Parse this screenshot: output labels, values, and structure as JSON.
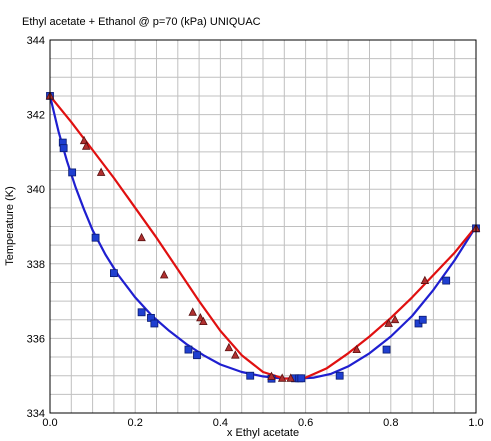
{
  "chart_data": {
    "type": "line",
    "title": "Ethyl acetate + Ethanol @ p=70 (kPa) UNIQUAC",
    "xlabel": "x Ethyl acetate",
    "ylabel": "Temperature (K)",
    "xlim": [
      0.0,
      1.0
    ],
    "ylim": [
      334,
      344
    ],
    "x_ticks": [
      "0.0",
      "0.2",
      "0.4",
      "0.6",
      "0.8",
      "1.0"
    ],
    "y_ticks": [
      "334",
      "336",
      "338",
      "340",
      "342",
      "344"
    ],
    "grid": true,
    "colors": {
      "bubble_curve": "#1f1fd0",
      "dew_curve": "#e01010",
      "bubble_marker": "#1f3fd0",
      "dew_marker": "#b03030",
      "grid": "#c0c0c0"
    },
    "series": [
      {
        "role": "bubble-curve",
        "x": [
          0.0,
          0.02,
          0.04,
          0.06,
          0.08,
          0.1,
          0.13,
          0.16,
          0.2,
          0.24,
          0.28,
          0.32,
          0.36,
          0.4,
          0.45,
          0.5,
          0.54,
          0.58,
          0.62,
          0.66,
          0.7,
          0.75,
          0.8,
          0.85,
          0.9,
          0.95,
          1.0
        ],
        "values": [
          342.5,
          341.55,
          340.75,
          340.05,
          339.45,
          338.9,
          338.25,
          337.7,
          337.1,
          336.6,
          336.2,
          335.85,
          335.55,
          335.3,
          335.1,
          334.98,
          334.93,
          334.92,
          334.95,
          335.05,
          335.25,
          335.6,
          336.05,
          336.6,
          337.3,
          338.1,
          339.0
        ]
      },
      {
        "role": "dew-curve",
        "x": [
          0.0,
          0.05,
          0.1,
          0.15,
          0.2,
          0.25,
          0.3,
          0.35,
          0.4,
          0.45,
          0.5,
          0.55,
          0.6,
          0.65,
          0.7,
          0.75,
          0.8,
          0.85,
          0.9,
          0.95,
          1.0
        ],
        "values": [
          342.5,
          341.8,
          341.05,
          340.3,
          339.5,
          338.7,
          337.85,
          337.0,
          336.2,
          335.55,
          335.1,
          334.92,
          334.95,
          335.2,
          335.6,
          336.05,
          336.55,
          337.1,
          337.7,
          338.3,
          339.0
        ]
      },
      {
        "role": "bubble-points",
        "x": [
          0.0,
          0.03,
          0.032,
          0.052,
          0.107,
          0.15,
          0.215,
          0.237,
          0.245,
          0.325,
          0.345,
          0.47,
          0.52,
          0.575,
          0.585,
          0.59,
          0.68,
          0.79,
          0.865,
          0.875,
          0.93,
          1.0
        ],
        "values": [
          342.5,
          341.25,
          341.1,
          340.45,
          338.7,
          337.75,
          336.7,
          336.55,
          336.4,
          335.7,
          335.55,
          335.0,
          334.92,
          334.93,
          334.93,
          334.93,
          335.0,
          335.7,
          336.4,
          336.5,
          337.55,
          338.95
        ]
      },
      {
        "role": "dew-points",
        "x": [
          0.0,
          0.08,
          0.085,
          0.12,
          0.215,
          0.268,
          0.335,
          0.353,
          0.36,
          0.42,
          0.435,
          0.52,
          0.545,
          0.565,
          0.72,
          0.795,
          0.81,
          0.88,
          1.0
        ],
        "values": [
          342.5,
          341.3,
          341.15,
          340.45,
          338.7,
          337.7,
          336.7,
          336.55,
          336.45,
          335.75,
          335.55,
          334.98,
          334.93,
          334.93,
          335.7,
          336.4,
          336.5,
          337.55,
          338.95
        ]
      }
    ]
  }
}
